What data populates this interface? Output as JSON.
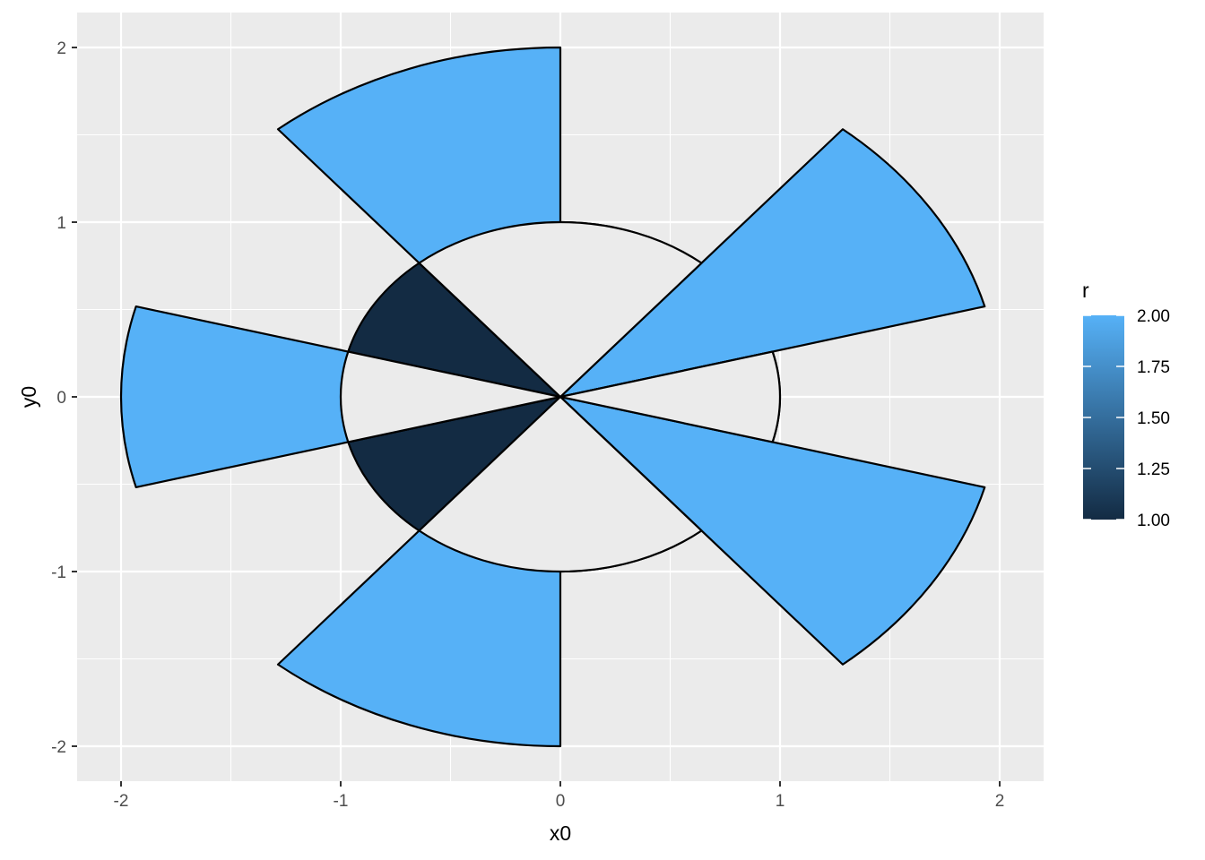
{
  "chart_data": {
    "type": "arc",
    "title": "",
    "xlabel": "x0",
    "ylabel": "y0",
    "xlim": [
      -2.2,
      2.2
    ],
    "ylim": [
      -2.2,
      2.2
    ],
    "x_ticks": [
      -2,
      -1,
      0,
      1,
      2
    ],
    "x_tick_labels": [
      "-2",
      "-1",
      "0",
      "1",
      "2"
    ],
    "y_ticks": [
      -2,
      -1,
      0,
      1,
      2
    ],
    "y_tick_labels": [
      "-2",
      "-1",
      "0",
      "1",
      "2"
    ],
    "grid": true,
    "background": "#ebebeb",
    "outline_color": "#000000",
    "empty_color": "#ebebeb",
    "arcs": [
      {
        "start_deg": 0,
        "end_deg": 40,
        "r": 1,
        "filled": true
      },
      {
        "start_deg": 40,
        "end_deg": 75,
        "r": 2,
        "filled": true
      },
      {
        "start_deg": 75,
        "end_deg": 105,
        "r": 1,
        "filled": true
      },
      {
        "start_deg": 105,
        "end_deg": 140,
        "r": 2,
        "filled": true
      },
      {
        "start_deg": 140,
        "end_deg": 180,
        "r": 1,
        "filled": true
      },
      {
        "start_deg": 180,
        "end_deg": 220,
        "r": 2,
        "filled": true
      },
      {
        "start_deg": 220,
        "end_deg": 255,
        "r": 1,
        "filled": true
      },
      {
        "start_deg": 255,
        "end_deg": 285,
        "r": 2,
        "filled": true
      },
      {
        "start_deg": 285,
        "end_deg": 320,
        "r": 1,
        "filled": true
      },
      {
        "start_deg": 320,
        "end_deg": 360,
        "r": 2,
        "filled": true
      },
      {
        "start_deg": 320,
        "end_deg": 40,
        "r": 1,
        "filled": false
      },
      {
        "start_deg": 75,
        "end_deg": 105,
        "r": 1,
        "filled": false
      },
      {
        "start_deg": 140,
        "end_deg": 220,
        "r": 1,
        "filled": false
      },
      {
        "start_deg": 255,
        "end_deg": 285,
        "r": 1,
        "filled": false
      }
    ],
    "legend": {
      "title": "r",
      "placement": "right",
      "min": 1,
      "max": 2,
      "ticks": [
        1.0,
        1.25,
        1.5,
        1.75,
        2.0
      ],
      "tick_labels": [
        "1.00",
        "1.25",
        "1.50",
        "1.75",
        "2.00"
      ],
      "color_low": "#132b43",
      "color_high": "#56b1f7"
    }
  }
}
